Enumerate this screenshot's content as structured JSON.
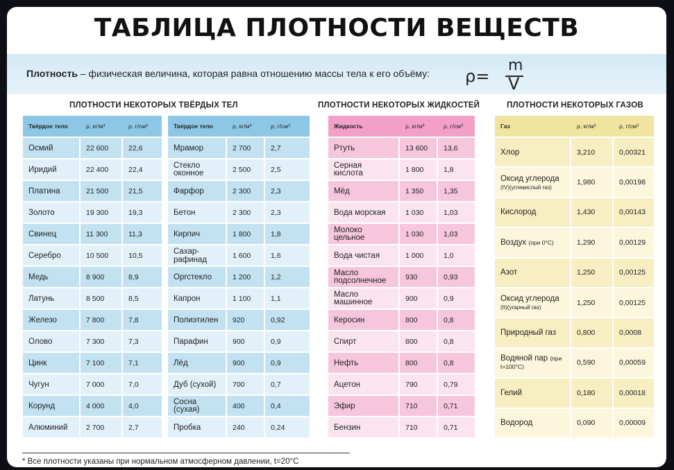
{
  "title": "ТАБЛИЦА ПЛОТНОСТИ ВЕЩЕСТВ",
  "definition": {
    "term": "Плотность",
    "text": " – физическая величина, которая равна отношению массы тела к его объёму:",
    "formula_lhs": "ρ=",
    "formula_num": "m",
    "formula_den": "V"
  },
  "solids": {
    "section_title": "ПЛОТНОСТИ НЕКОТОРЫХ ТВЁРДЫХ ТЕЛ",
    "headers": [
      "Твёрдое тело",
      "ρ, кг/м³",
      "ρ, г/см³"
    ],
    "left": [
      [
        "Осмий",
        "22 600",
        "22,6"
      ],
      [
        "Иридий",
        "22 400",
        "22,4"
      ],
      [
        "Платина",
        "21 500",
        "21,5"
      ],
      [
        "Золото",
        "19 300",
        "19,3"
      ],
      [
        "Свинец",
        "11 300",
        "11,3"
      ],
      [
        "Серебро",
        "10 500",
        "10,5"
      ],
      [
        "Медь",
        "8 900",
        "8,9"
      ],
      [
        "Латунь",
        "8 500",
        "8,5"
      ],
      [
        "Железо",
        "7 800",
        "7,8"
      ],
      [
        "Олово",
        "7 300",
        "7,3"
      ],
      [
        "Цинк",
        "7 100",
        "7,1"
      ],
      [
        "Чугун",
        "7 000",
        "7,0"
      ],
      [
        "Корунд",
        "4 000",
        "4,0"
      ],
      [
        "Алюминий",
        "2 700",
        "2,7"
      ]
    ],
    "right": [
      [
        "Мрамор",
        "2 700",
        "2,7"
      ],
      [
        "Стекло оконное",
        "2 500",
        "2,5"
      ],
      [
        "Фарфор",
        "2 300",
        "2,3"
      ],
      [
        "Бетон",
        "2 300",
        "2,3"
      ],
      [
        "Кирпич",
        "1 800",
        "1,8"
      ],
      [
        "Сахар-рафинад",
        "1 600",
        "1,6"
      ],
      [
        "Оргстекло",
        "1 200",
        "1,2"
      ],
      [
        "Капрон",
        "1 100",
        "1,1"
      ],
      [
        "Полиэтилен",
        "920",
        "0,92"
      ],
      [
        "Парафин",
        "900",
        "0,9"
      ],
      [
        "Лёд",
        "900",
        "0,9"
      ],
      [
        "Дуб (сухой)",
        "700",
        "0,7"
      ],
      [
        "Сосна (сухая)",
        "400",
        "0,4"
      ],
      [
        "Пробка",
        "240",
        "0,24"
      ]
    ]
  },
  "liquids": {
    "section_title": "ПЛОТНОСТИ НЕКОТОРЫХ ЖИДКОСТЕЙ",
    "headers": [
      "Жидкость",
      "ρ, кг/м³",
      "ρ, г/см³"
    ],
    "rows": [
      [
        "Ртуть",
        "13 600",
        "13,6"
      ],
      [
        "Серная кислота",
        "1 800",
        "1,8"
      ],
      [
        "Мёд",
        "1 350",
        "1,35"
      ],
      [
        "Вода морская",
        "1 030",
        "1,03"
      ],
      [
        "Молоко цельное",
        "1 030",
        "1,03"
      ],
      [
        "Вода чистая",
        "1 000",
        "1,0"
      ],
      [
        "Масло подсолнечное",
        "930",
        "0,93"
      ],
      [
        "Масло машинное",
        "900",
        "0,9"
      ],
      [
        "Керосин",
        "800",
        "0,8"
      ],
      [
        "Спирт",
        "800",
        "0,8"
      ],
      [
        "Нефть",
        "800",
        "0,8"
      ],
      [
        "Ацетон",
        "790",
        "0,79"
      ],
      [
        "Эфир",
        "710",
        "0,71"
      ],
      [
        "Бензин",
        "710",
        "0,71"
      ]
    ]
  },
  "gases": {
    "section_title": "ПЛОТНОСТИ НЕКОТОРЫХ ГАЗОВ",
    "headers": [
      "Газ",
      "ρ, кг/м³",
      "ρ, г/см³"
    ],
    "rows": [
      [
        "Хлор",
        "",
        "3,210",
        "0,00321"
      ],
      [
        "Оксид углерода",
        "(IV)(углекислый газ)",
        "1,980",
        "0,00198"
      ],
      [
        "Кислород",
        "",
        "1,430",
        "0,00143"
      ],
      [
        "Воздух",
        "(при 0°С)",
        "1,290",
        "0,00129"
      ],
      [
        "Азот",
        "",
        "1,250",
        "0,00125"
      ],
      [
        "Оксид углерода",
        "(II)(угарный газ)",
        "1,250",
        "0,00125"
      ],
      [
        "Природный газ",
        "",
        "0,800",
        "0,0008"
      ],
      [
        "Водяной пар",
        "(при t=100°С)",
        "0,590",
        "0,00059"
      ],
      [
        "Гелий",
        "",
        "0,180",
        "0,00018"
      ],
      [
        "Водород",
        "",
        "0,090",
        "0,00009"
      ]
    ]
  },
  "footnote": "* Все плотности указаны при нормальном атмосферном давлении, t=20°С"
}
